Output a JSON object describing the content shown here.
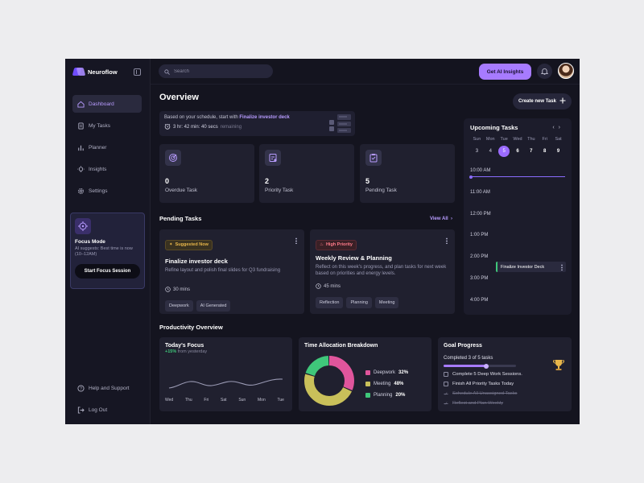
{
  "app": {
    "name": "Neuroflow"
  },
  "sidebar": {
    "items": [
      {
        "label": "Dashboard",
        "icon": "home-icon",
        "active": true
      },
      {
        "label": "My Tasks",
        "icon": "document-icon"
      },
      {
        "label": "Planner",
        "icon": "chart-icon"
      },
      {
        "label": "Insights",
        "icon": "lightbulb-icon"
      },
      {
        "label": "Settings",
        "icon": "gear-icon"
      }
    ],
    "focus": {
      "title": "Focus Mode",
      "text": "AI suggests: Best time is now (10–12AM)",
      "button": "Start Focus Session"
    },
    "bottom": [
      {
        "label": "Help and Support",
        "icon": "help-icon"
      },
      {
        "label": "Log Out",
        "icon": "logout-icon"
      }
    ]
  },
  "topbar": {
    "search_placeholder": "Search",
    "ai_button": "Get AI Insights"
  },
  "overview": {
    "title": "Overview",
    "create_button": "Create new Task",
    "schedule": {
      "prefix": "Based on your schedule, start with",
      "task": "Finalize investor deck",
      "countdown": "3 hr: 42 min: 40 secs",
      "suffix": "remaining"
    },
    "stats": [
      {
        "value": "0",
        "label": "Overdue Task",
        "icon": "target-icon"
      },
      {
        "value": "2",
        "label": "Priority Task",
        "icon": "priority-icon"
      },
      {
        "value": "5",
        "label": "Pending Task",
        "icon": "clipboard-icon"
      }
    ]
  },
  "pending": {
    "title": "Pending Tasks",
    "view_all": "View All",
    "tasks": [
      {
        "badge": "Suggested Now",
        "title": "Finalize investor deck",
        "desc": "Refine layout and polish final slides for Q3 fundraising",
        "time": "30 mins",
        "tags": [
          "Deepwork",
          "AI Generated"
        ]
      },
      {
        "badge": "High Priority",
        "title": "Weekly Review & Planning",
        "desc": "Reflect on this week's progress, and plan tasks for next week based on priorities and energy levels.",
        "time": "45 mins",
        "tags": [
          "Reflection",
          "Planning",
          "Meeting"
        ]
      }
    ]
  },
  "upcoming": {
    "title": "Upcoming Tasks",
    "weekdays": [
      "Sun",
      "Mon",
      "Tue",
      "Wed",
      "Thu",
      "Fri",
      "Sat"
    ],
    "dates": [
      "3",
      "4",
      "5",
      "6",
      "7",
      "8",
      "9"
    ],
    "selected_index": 2,
    "times": [
      "10:00 AM",
      "11:00 AM",
      "12:00 PM",
      "1:00 PM",
      "2:00 PM",
      "3:00 PM",
      "4:00 PM"
    ],
    "event": "Finalize Investor Deck"
  },
  "productivity": {
    "title": "Productivity Overview",
    "focus": {
      "title": "Today's Focus",
      "change": "+15%",
      "change_suffix": "from yesterday",
      "days": [
        "Wed",
        "Thu",
        "Fri",
        "Sat",
        "Sun",
        "Mon",
        "Tue"
      ]
    },
    "allocation": {
      "title": "Time Allocation Breakdown",
      "items": [
        {
          "label": "Deepwork",
          "value": "32%",
          "pct": 32,
          "color": "#e0559c"
        },
        {
          "label": "Meeting",
          "value": "48%",
          "pct": 48,
          "color": "#c9c05a"
        },
        {
          "label": "Planning",
          "value": "20%",
          "pct": 20,
          "color": "#3fc77a"
        }
      ]
    },
    "goal": {
      "title": "Goal Progress",
      "summary": "Completed 3 of 5 tasks",
      "progress": 0.6,
      "items": [
        {
          "label": "Complete 5 Deep Work Sessions.",
          "done": false
        },
        {
          "label": "Finish All Priority Tasks Today",
          "done": false
        },
        {
          "label": "Schedule All Unassigned Tasks",
          "done": true
        },
        {
          "label": "Reflect and Plan Weekly",
          "done": true
        }
      ]
    }
  }
}
